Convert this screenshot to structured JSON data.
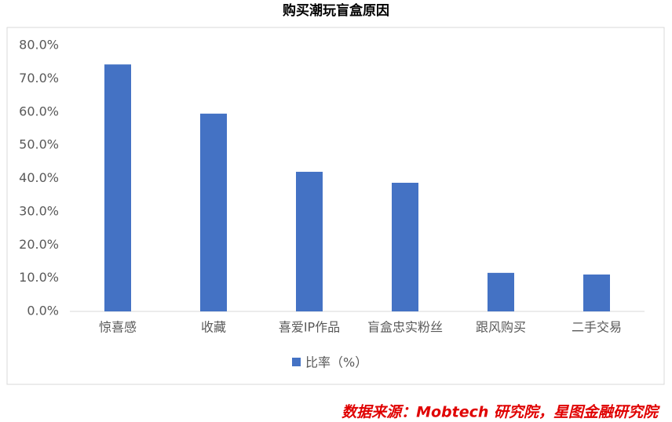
{
  "chart_data": {
    "type": "bar",
    "title": "购买潮玩盲盒原因",
    "categories": [
      "惊喜感",
      "收藏",
      "喜爱IP作品",
      "盲盒忠实粉丝",
      "跟风购买",
      "二手交易"
    ],
    "series": [
      {
        "name": "比率（%）",
        "color": "#4472c4",
        "values": [
          74.3,
          59.5,
          42.0,
          38.7,
          11.6,
          11.1
        ]
      }
    ],
    "ylim": [
      0,
      80
    ],
    "yticks": [
      {
        "value": 0,
        "label": "0.0%"
      },
      {
        "value": 10,
        "label": "10.0%"
      },
      {
        "value": 20,
        "label": "20.0%"
      },
      {
        "value": 30,
        "label": "30.0%"
      },
      {
        "value": 40,
        "label": "40.0%"
      },
      {
        "value": 50,
        "label": "50.0%"
      },
      {
        "value": 60,
        "label": "60.0%"
      },
      {
        "value": 70,
        "label": "70.0%"
      },
      {
        "value": 80,
        "label": "80.0%"
      }
    ],
    "grid": false,
    "legend": "bottom",
    "source": "数据来源：Mobtech 研究院，星图金融研究院"
  }
}
